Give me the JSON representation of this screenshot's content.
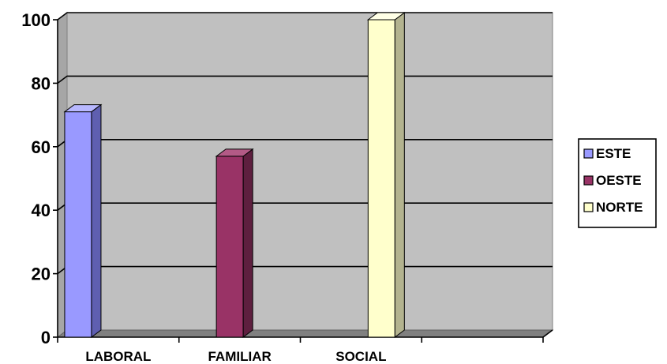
{
  "chart_data": {
    "type": "bar",
    "categories": [
      "LABORAL",
      "FAMILIAR",
      "SOCIAL",
      ""
    ],
    "series": [
      {
        "name": "ESTE",
        "values": [
          71,
          null,
          null,
          null
        ],
        "color": "#9999ff",
        "side": "#5f5fb0",
        "top": "#b8b8ff"
      },
      {
        "name": "OESTE",
        "values": [
          null,
          57,
          null,
          null
        ],
        "color": "#993366",
        "side": "#5e1f3f",
        "top": "#b35a86"
      },
      {
        "name": "NORTE",
        "values": [
          null,
          null,
          100,
          null
        ],
        "color": "#ffffcc",
        "side": "#b3b38f",
        "top": "#ffffe6"
      }
    ],
    "ylim": [
      0,
      100
    ],
    "yticks": [
      "0",
      "20",
      "40",
      "60",
      "80",
      "100"
    ],
    "grid": true,
    "legend": "right",
    "plot_background": "#c0c0c0"
  }
}
